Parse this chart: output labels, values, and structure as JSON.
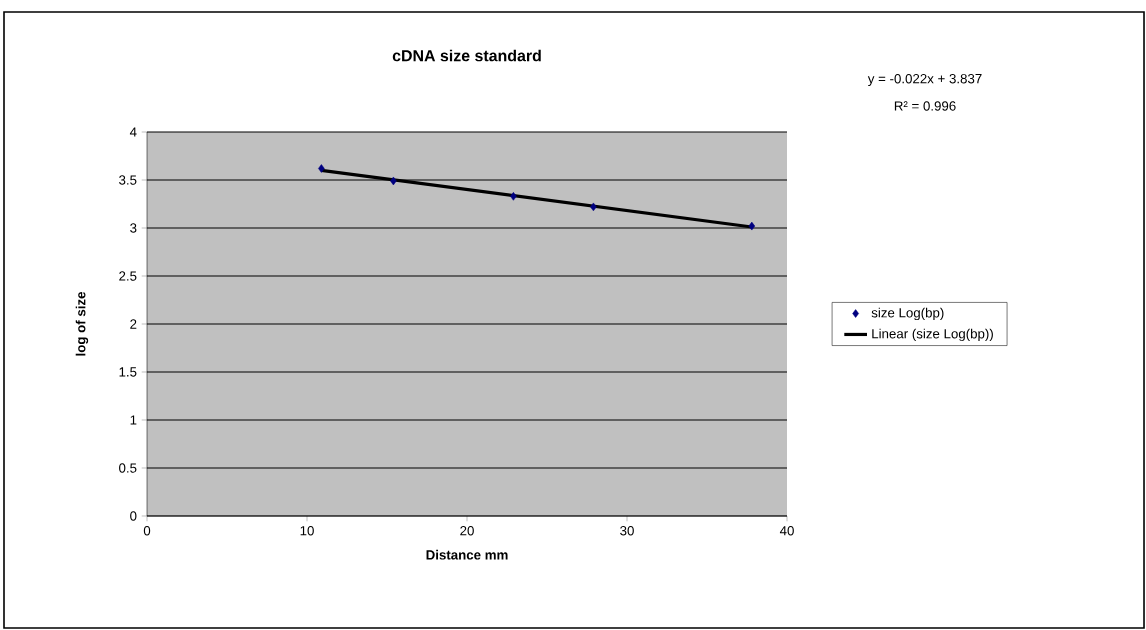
{
  "chart_data": {
    "type": "scatter",
    "title": "cDNA size standard",
    "xlabel": "Distance mm",
    "ylabel": "log of size",
    "annotations": [
      "y = -0.022x  + 3.837",
      "R² = 0.996"
    ],
    "x": [
      10.9,
      15.4,
      22.9,
      27.9,
      37.8
    ],
    "series": [
      {
        "name": "size Log(bp)",
        "color": "#000080",
        "marker": "diamond",
        "values": [
          3.62,
          3.49,
          3.33,
          3.22,
          3.02
        ]
      },
      {
        "name": "Linear (size Log(bp))",
        "type": "line",
        "color": "#000000",
        "marker": "none",
        "x": [
          10.9,
          37.8
        ],
        "values": [
          3.6,
          3.01
        ]
      }
    ],
    "xlim": [
      0,
      40
    ],
    "xticks": [
      0,
      10,
      20,
      30,
      40
    ],
    "ylim": [
      0,
      4
    ],
    "yticks": [
      0,
      0.5,
      1,
      1.5,
      2,
      2.5,
      3,
      3.5,
      4
    ],
    "grid": "y",
    "legend": "right"
  }
}
